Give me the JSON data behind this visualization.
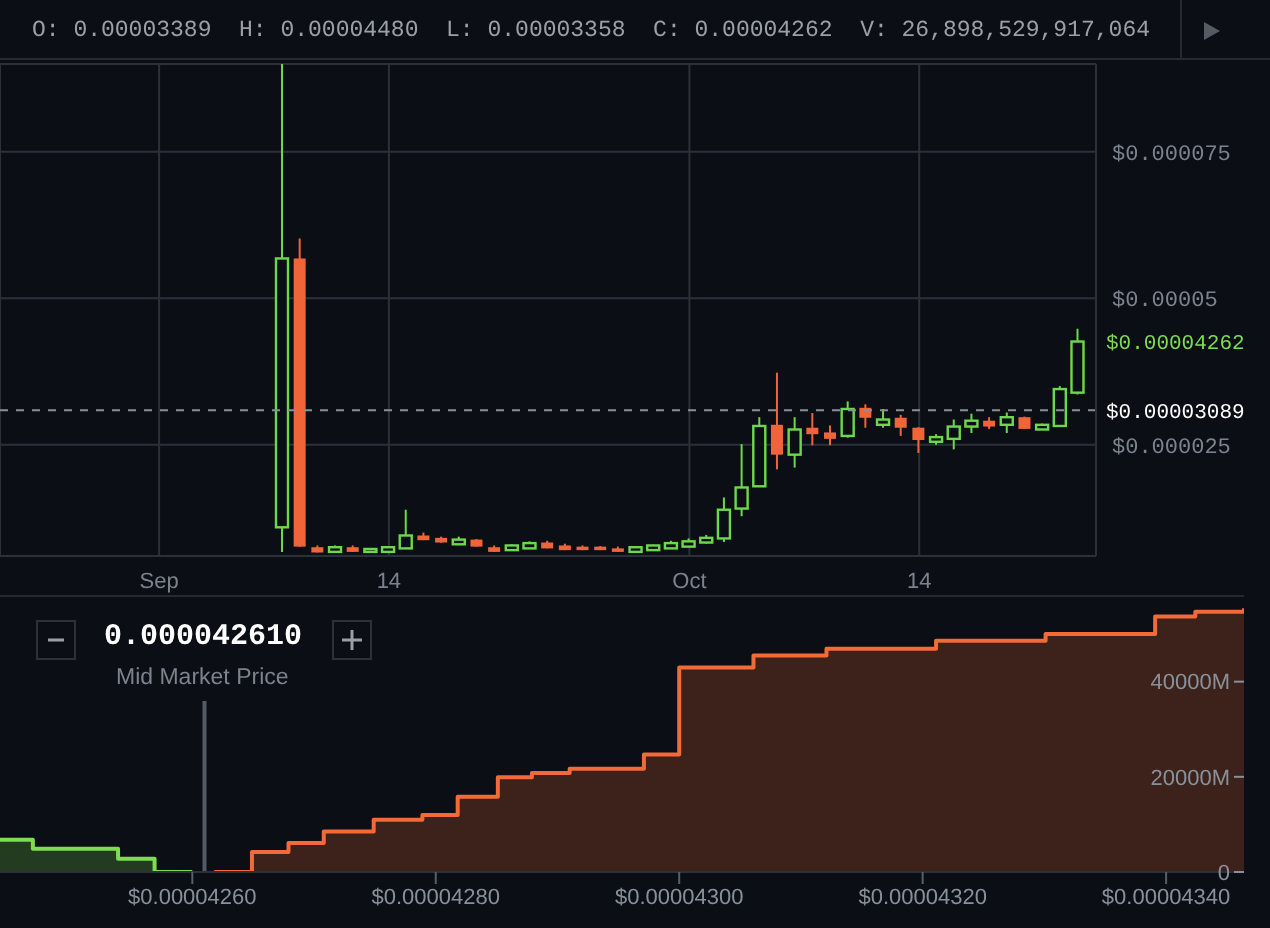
{
  "chart_data": [
    {
      "type": "candlestick",
      "x": [
        "--09-08",
        "--09-09",
        "--09-10",
        "--09-11",
        "--09-12",
        "--09-13",
        "--09-14",
        "--09-15",
        "--09-16",
        "--09-17",
        "--09-18",
        "--09-19",
        "--09-20",
        "--09-21",
        "--09-22",
        "--09-23",
        "--09-24",
        "--09-25",
        "--09-26",
        "--09-27",
        "--09-28",
        "--09-29",
        "--09-30",
        "--10-01",
        "--10-02",
        "--10-03",
        "--10-04",
        "--10-05",
        "--10-06",
        "--10-07",
        "--10-08",
        "--10-09",
        "--10-10",
        "--10-11",
        "--10-12",
        "--10-13",
        "--10-14",
        "--10-15",
        "--10-16",
        "--10-17",
        "--10-18",
        "--10-19",
        "--10-20",
        "--10-21",
        "--10-22",
        "--10-23"
      ],
      "ohlc": [
        [
          1.09e-05,
          9e-05,
          6.7e-06,
          5.68e-05
        ],
        [
          5.68e-05,
          6.02e-05,
          7.6e-06,
          7.6e-06
        ],
        [
          7.5e-06,
          7.8e-06,
          6.6e-06,
          6.6e-06
        ],
        [
          6.7e-06,
          7.8e-06,
          6.6e-06,
          7.5e-06
        ],
        [
          7.5e-06,
          7.8e-06,
          6.7e-06,
          6.7e-06
        ],
        [
          6.7e-06,
          7.3e-06,
          6.6e-06,
          7.2e-06
        ],
        [
          6.7e-06,
          7.6e-06,
          6.6e-06,
          7.5e-06
        ],
        [
          7.3e-06,
          1.39e-05,
          7.3e-06,
          9.5e-06
        ],
        [
          9.5e-06,
          1e-05,
          8.7e-06,
          8.7e-06
        ],
        [
          9.1e-06,
          9.3e-06,
          8.3e-06,
          8.3e-06
        ],
        [
          8e-06,
          9.3e-06,
          7.9e-06,
          8.8e-06
        ],
        [
          8.8e-06,
          8.9e-06,
          7.6e-06,
          7.6e-06
        ],
        [
          7.5e-06,
          7.8e-06,
          6.7e-06,
          6.7e-06
        ],
        [
          7e-06,
          8e-06,
          6.9e-06,
          7.8e-06
        ],
        [
          7.3e-06,
          8.5e-06,
          7.2e-06,
          8.2e-06
        ],
        [
          8.3e-06,
          8.6e-06,
          7.3e-06,
          7.3e-06
        ],
        [
          7.8e-06,
          8.1e-06,
          7e-06,
          7e-06
        ],
        [
          7.6e-06,
          7.8e-06,
          7e-06,
          7e-06
        ],
        [
          7.6e-06,
          7.7e-06,
          7e-06,
          7e-06
        ],
        [
          7.3e-06,
          7.6e-06,
          6.7e-06,
          6.7e-06
        ],
        [
          6.7e-06,
          7.6e-06,
          6.6e-06,
          7.5e-06
        ],
        [
          7e-06,
          7.9e-06,
          6.9e-06,
          7.8e-06
        ],
        [
          7.3e-06,
          8.6e-06,
          7.2e-06,
          8.2e-06
        ],
        [
          7.6e-06,
          9e-06,
          7.5e-06,
          8.5e-06
        ],
        [
          8.3e-06,
          9.6e-06,
          8.1e-06,
          9.1e-06
        ],
        [
          9e-06,
          1.6e-05,
          8.4e-06,
          1.39e-05
        ],
        [
          1.41e-05,
          2.51e-05,
          1.28e-05,
          1.77e-05
        ],
        [
          1.79e-05,
          2.97e-05,
          1.79e-05,
          2.82e-05
        ],
        [
          2.84e-05,
          3.73e-05,
          2.08e-05,
          2.33e-05
        ],
        [
          2.33e-05,
          2.97e-05,
          2.11e-05,
          2.76e-05
        ],
        [
          2.79e-05,
          3.04e-05,
          2.49e-05,
          2.68e-05
        ],
        [
          2.71e-05,
          2.83e-05,
          2.49e-05,
          2.6e-05
        ],
        [
          2.65e-05,
          3.24e-05,
          2.62e-05,
          3.11e-05
        ],
        [
          3.13e-05,
          3.19e-05,
          2.79e-05,
          2.96e-05
        ],
        [
          2.84e-05,
          3.11e-05,
          2.79e-05,
          2.93e-05
        ],
        [
          2.96e-05,
          3.01e-05,
          2.65e-05,
          2.79e-05
        ],
        [
          2.79e-05,
          2.8e-05,
          2.36e-05,
          2.58e-05
        ],
        [
          2.55e-05,
          2.68e-05,
          2.5e-05,
          2.63e-05
        ],
        [
          2.6e-05,
          2.93e-05,
          2.42e-05,
          2.81e-05
        ],
        [
          2.81e-05,
          3.03e-05,
          2.7e-05,
          2.91e-05
        ],
        [
          2.91e-05,
          2.97e-05,
          2.77e-05,
          2.81e-05
        ],
        [
          2.84e-05,
          3.05e-05,
          2.7e-05,
          2.97e-05
        ],
        [
          2.97e-05,
          2.98e-05,
          2.77e-05,
          2.77e-05
        ],
        [
          2.76e-05,
          2.86e-05,
          2.76e-05,
          2.84e-05
        ],
        [
          2.82e-05,
          3.5e-05,
          2.82e-05,
          3.45e-05
        ],
        [
          3.389e-05,
          4.48e-05,
          3.358e-05,
          4.262e-05
        ]
      ],
      "colors": [
        "#6cd94a",
        "#f0643a",
        "#f0643a",
        "#6cd94a",
        "#f0643a",
        "#6cd94a",
        "#6cd94a",
        "#6cd94a",
        "#f0643a",
        "#f0643a",
        "#6cd94a",
        "#f0643a",
        "#f0643a",
        "#6cd94a",
        "#6cd94a",
        "#f0643a",
        "#f0643a",
        "#f0643a",
        "#f0643a",
        "#f0643a",
        "#6cd94a",
        "#6cd94a",
        "#6cd94a",
        "#6cd94a",
        "#6cd94a",
        "#6cd94a",
        "#6cd94a",
        "#6cd94a",
        "#f0643a",
        "#6cd94a",
        "#f0643a",
        "#f0643a",
        "#6cd94a",
        "#f0643a",
        "#6cd94a",
        "#f0643a",
        "#f0643a",
        "#6cd94a",
        "#6cd94a",
        "#6cd94a",
        "#f0643a",
        "#6cd94a",
        "#f0643a",
        "#6cd94a",
        "#6cd94a",
        "#6cd94a"
      ],
      "xlim": [
        "--08-23",
        "--10-24"
      ],
      "xticks": [
        {
          "value": "--09-01",
          "label": "Sep"
        },
        {
          "value": "--09-14",
          "label": "14"
        },
        {
          "value": "--10-01",
          "label": "Oct"
        },
        {
          "value": "--10-14",
          "label": "14"
        }
      ],
      "ylim": [
        6e-06,
        9e-05
      ],
      "yticks": [
        {
          "value": 2.5e-05,
          "label": "$0.000025"
        },
        {
          "value": 5e-05,
          "label": "$0.00005"
        },
        {
          "value": 7.5e-05,
          "label": "$0.000075"
        }
      ],
      "grid": true,
      "ref_lines": [
        {
          "axis": "y",
          "value": 3.089e-05,
          "label": "$0.00003089",
          "color": "#8a8f96",
          "line_style": "dashed"
        }
      ],
      "annotations": [
        "O: 0.00003389  H: 0.00004480  L: 0.00003358  C: 0.00004262  V: 26,898,529,917,064",
        "$0.00004262"
      ]
    },
    {
      "type": "step",
      "series": [
        {
          "color": "#7ddc4f",
          "x": [
            4.2442e-05,
            4.2469e-05,
            4.2539e-05,
            4.2569e-05,
            4.26e-05
          ],
          "values": [
            6800,
            4900,
            2800,
            0,
            0
          ]
        },
        {
          "color": "#f36a36",
          "x": [
            4.2618e-05,
            4.2649e-05,
            4.2679e-05,
            4.2708e-05,
            4.2749e-05,
            4.2789e-05,
            4.2818e-05,
            4.2851e-05,
            4.2879e-05,
            4.291e-05,
            4.2971e-05,
            4.3e-05,
            4.3061e-05,
            4.3121e-05,
            4.3211e-05,
            4.3301e-05,
            4.3391e-05,
            4.3424e-05,
            4.3464e-05
          ],
          "values": [
            0,
            4200,
            6100,
            8500,
            11000,
            12000,
            15800,
            19900,
            20800,
            21700,
            24700,
            43000,
            45500,
            46900,
            48600,
            50000,
            53700,
            54700,
            55400
          ]
        }
      ],
      "xlim": [
        4.2442e-05,
        4.3464e-05
      ],
      "xticks": [
        {
          "value": 4.26e-05,
          "label": "$0.00004260"
        },
        {
          "value": 4.28e-05,
          "label": "$0.00004280"
        },
        {
          "value": 4.3e-05,
          "label": "$0.00004300"
        },
        {
          "value": 4.32e-05,
          "label": "$0.00004320"
        },
        {
          "value": 4.34e-05,
          "label": "$0.00004340"
        }
      ],
      "ylim": [
        0,
        58000
      ],
      "yticks": [
        0,
        {
          "value": 20000,
          "label": "20000M"
        },
        {
          "value": 40000,
          "label": "40000M"
        }
      ],
      "ref_lines": [
        {
          "axis": "x",
          "value": 4.261e-05,
          "label": "Mid Market Price",
          "color": "#555b63"
        }
      ],
      "annotations": [
        "0.000042610"
      ]
    }
  ]
}
